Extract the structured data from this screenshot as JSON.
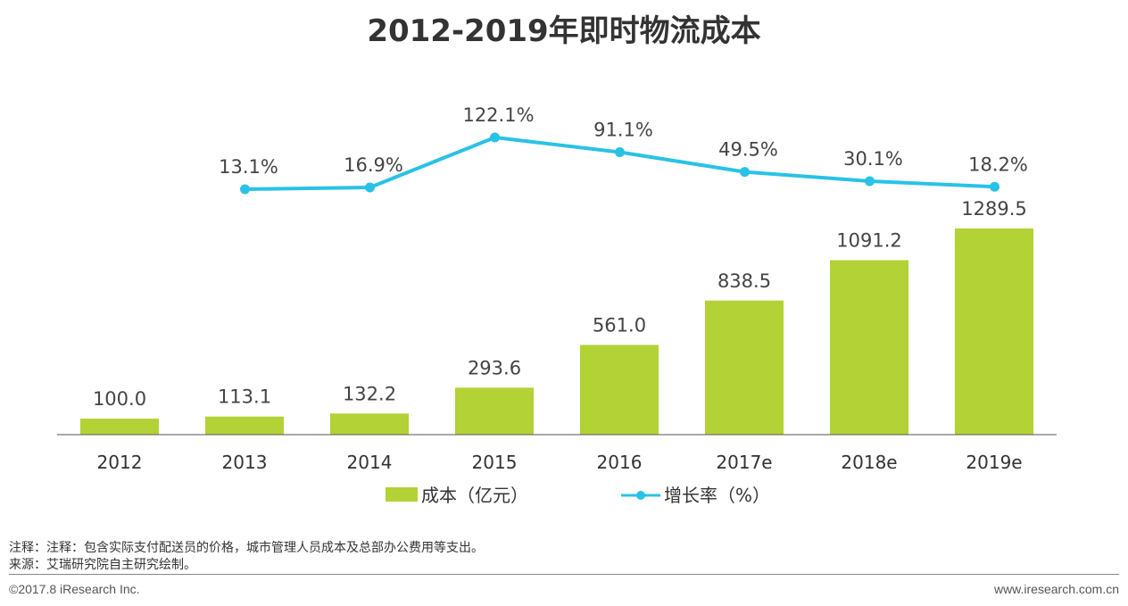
{
  "colors": {
    "bar": "#b2d235",
    "line": "#29c2e6",
    "axis": "#555555"
  },
  "chart_data": {
    "type": "bar",
    "title": "2012-2019年即时物流成本",
    "categories": [
      "2012",
      "2013",
      "2014",
      "2015",
      "2016",
      "2017e",
      "2018e",
      "2019e"
    ],
    "series": [
      {
        "name": "成本（亿元）",
        "type": "bar",
        "values": [
          100.0,
          113.1,
          132.2,
          293.6,
          561.0,
          838.5,
          1091.2,
          1289.5
        ],
        "labels": [
          "100.0",
          "113.1",
          "132.2",
          "293.6",
          "561.0",
          "838.5",
          "1091.2",
          "1289.5"
        ]
      },
      {
        "name": "增长率（%）",
        "type": "line",
        "values": [
          null,
          13.1,
          16.9,
          122.1,
          91.1,
          49.5,
          30.1,
          18.2
        ],
        "labels": [
          "",
          "13.1%",
          "16.9%",
          "122.1%",
          "91.1%",
          "49.5%",
          "30.1%",
          "18.2%"
        ]
      }
    ],
    "ylim_bar": [
      0,
      1289.5
    ],
    "ylim_line": [
      13.1,
      122.1
    ],
    "legend": [
      "成本（亿元）",
      "增长率（%）"
    ],
    "legend_position": "bottom"
  },
  "footer": {
    "note": "注释：注释：包含实际支付配送员的价格，城市管理人员成本及总部办公费用等支出。",
    "source": "来源：艾瑞研究院自主研究绘制。",
    "copyright": "©2017.8 iResearch Inc.",
    "website": "www.iresearch.com.cn"
  }
}
